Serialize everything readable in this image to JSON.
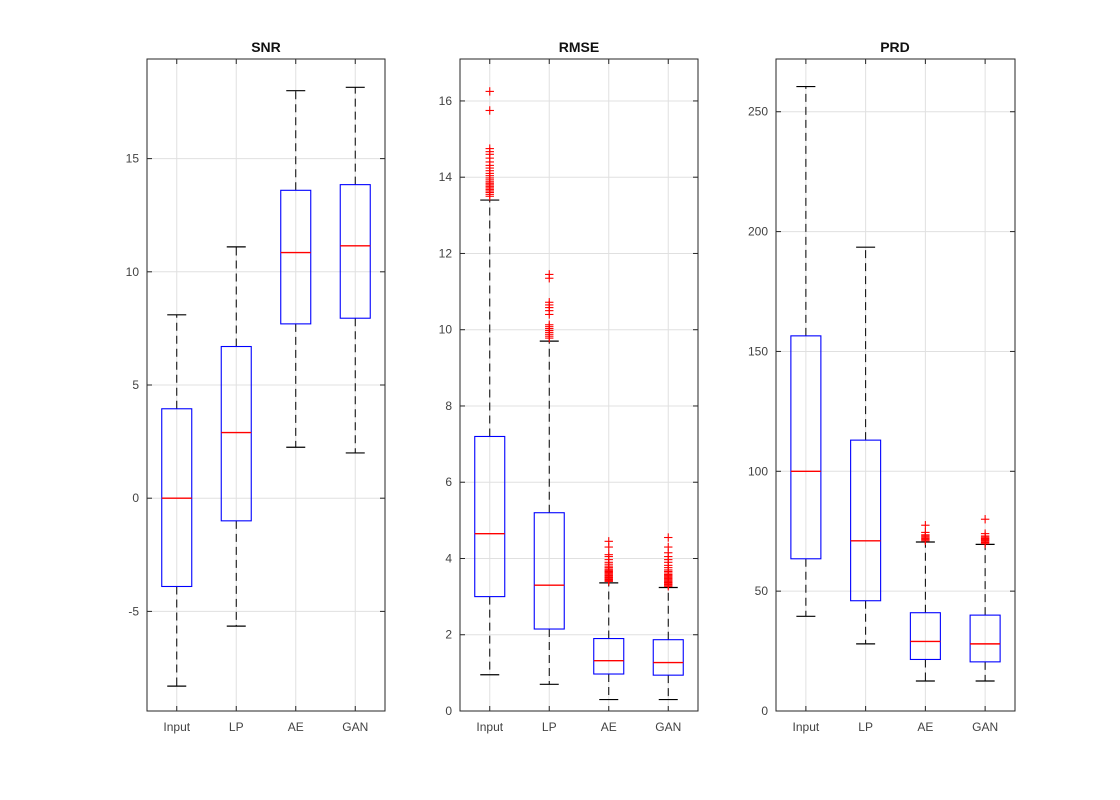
{
  "figure": {
    "background": "#ffffff",
    "box_color": "#0000ff",
    "median_color": "#ff0000",
    "outlier_color": "#ff0000",
    "whisker_color": "#000000",
    "axis_color": "#262626",
    "grid_color": "#e0e0e0",
    "tick_label_color": "#424242",
    "title_color": "#111111"
  },
  "chart_data": [
    {
      "type": "box",
      "title": "SNR",
      "categories": [
        "Input",
        "LP",
        "AE",
        "GAN"
      ],
      "ylim": [
        -9.4,
        19.4
      ],
      "yticks": [
        -5,
        0,
        5,
        10,
        15
      ],
      "grid": true,
      "legend": "none",
      "boxes": [
        {
          "category": "Input",
          "whisker_low": -8.3,
          "q1": -3.9,
          "median": 0.0,
          "q3": 3.95,
          "whisker_high": 8.1,
          "outliers": []
        },
        {
          "category": "LP",
          "whisker_low": -5.65,
          "q1": -1.0,
          "median": 2.9,
          "q3": 6.7,
          "whisker_high": 11.1,
          "outliers": []
        },
        {
          "category": "AE",
          "whisker_low": 2.25,
          "q1": 7.7,
          "median": 10.85,
          "q3": 13.6,
          "whisker_high": 18.0,
          "outliers": []
        },
        {
          "category": "GAN",
          "whisker_low": 2.0,
          "q1": 7.95,
          "median": 11.15,
          "q3": 13.85,
          "whisker_high": 18.15,
          "outliers": []
        }
      ]
    },
    {
      "type": "box",
      "title": "RMSE",
      "categories": [
        "Input",
        "LP",
        "AE",
        "GAN"
      ],
      "ylim": [
        0,
        17.1
      ],
      "yticks": [
        0,
        2,
        4,
        6,
        8,
        10,
        12,
        14,
        16
      ],
      "grid": true,
      "legend": "none",
      "boxes": [
        {
          "category": "Input",
          "whisker_low": 0.95,
          "q1": 3.0,
          "median": 4.65,
          "q3": 7.2,
          "whisker_high": 13.4,
          "outliers": [
            13.5,
            13.55,
            13.6,
            13.64,
            13.68,
            13.72,
            13.76,
            13.8,
            13.84,
            13.88,
            13.93,
            13.98,
            14.04,
            14.1,
            14.17,
            14.24,
            14.31,
            14.4,
            14.5,
            14.6,
            14.67,
            14.75,
            15.75,
            16.25
          ]
        },
        {
          "category": "LP",
          "whisker_low": 0.7,
          "q1": 2.15,
          "median": 3.3,
          "q3": 5.2,
          "whisker_high": 9.7,
          "outliers": [
            9.78,
            9.83,
            9.88,
            9.93,
            9.98,
            10.03,
            10.08,
            10.13,
            10.4,
            10.5,
            10.58,
            10.65,
            10.72,
            11.35,
            11.45
          ]
        },
        {
          "category": "AE",
          "whisker_low": 0.3,
          "q1": 0.97,
          "median": 1.32,
          "q3": 1.9,
          "whisker_high": 3.36,
          "outliers": [
            3.4,
            3.42,
            3.45,
            3.47,
            3.5,
            3.52,
            3.55,
            3.57,
            3.6,
            3.63,
            3.66,
            3.69,
            3.72,
            3.76,
            3.8,
            3.85,
            3.9,
            3.97,
            4.05,
            4.1,
            4.3,
            4.45
          ]
        },
        {
          "category": "GAN",
          "whisker_low": 0.3,
          "q1": 0.94,
          "median": 1.27,
          "q3": 1.87,
          "whisker_high": 3.24,
          "outliers": [
            3.27,
            3.3,
            3.32,
            3.35,
            3.37,
            3.4,
            3.43,
            3.46,
            3.49,
            3.52,
            3.55,
            3.58,
            3.62,
            3.66,
            3.7,
            3.76,
            3.82,
            3.9,
            3.97,
            4.05,
            4.15,
            4.3,
            4.55
          ]
        }
      ]
    },
    {
      "type": "box",
      "title": "PRD",
      "categories": [
        "Input",
        "LP",
        "AE",
        "GAN"
      ],
      "ylim": [
        0,
        272
      ],
      "yticks": [
        0,
        50,
        100,
        150,
        200,
        250
      ],
      "grid": true,
      "legend": "none",
      "boxes": [
        {
          "category": "Input",
          "whisker_low": 39.5,
          "q1": 63.5,
          "median": 100,
          "q3": 156.5,
          "whisker_high": 260.5,
          "outliers": []
        },
        {
          "category": "LP",
          "whisker_low": 28,
          "q1": 46,
          "median": 71,
          "q3": 113,
          "whisker_high": 193.5,
          "outliers": []
        },
        {
          "category": "AE",
          "whisker_low": 12.5,
          "q1": 21.5,
          "median": 29,
          "q3": 41,
          "whisker_high": 70.5,
          "outliers": [
            71,
            71.5,
            72,
            72.5,
            73,
            73.5,
            74.5,
            77.5
          ]
        },
        {
          "category": "GAN",
          "whisker_low": 12.5,
          "q1": 20.5,
          "median": 28,
          "q3": 40,
          "whisker_high": 69.5,
          "outliers": [
            69.8,
            70.3,
            70.8,
            71.2,
            71.6,
            72,
            72.5,
            73,
            74,
            80
          ]
        }
      ]
    }
  ]
}
